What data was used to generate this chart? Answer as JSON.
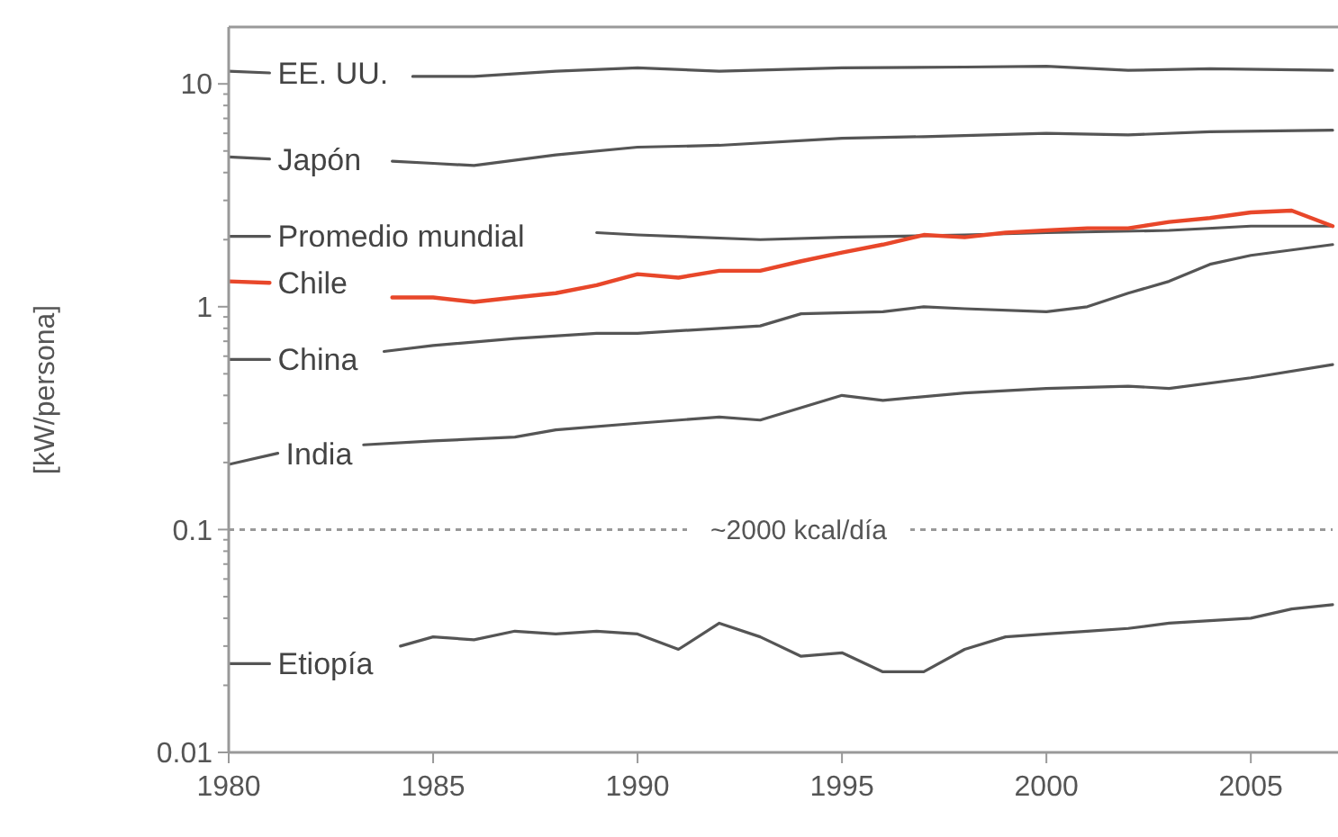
{
  "chart_data": {
    "type": "line",
    "ylabel": "[kW/persona]",
    "log": "y",
    "grid": false,
    "line_style": "solid",
    "xlim": [
      1980,
      2007
    ],
    "xticks": [
      1980,
      1985,
      1990,
      1995,
      2000,
      2005
    ],
    "ylim": [
      0.01,
      18
    ],
    "yticks": [
      0.01,
      {
        "value": 0.02,
        "label": null
      },
      {
        "value": 0.03,
        "label": null
      },
      {
        "value": 0.04,
        "label": null
      },
      {
        "value": 0.05,
        "label": null
      },
      {
        "value": 0.06,
        "label": null
      },
      {
        "value": 0.07,
        "label": null
      },
      {
        "value": 0.08,
        "label": null
      },
      {
        "value": 0.09,
        "label": null
      },
      0.1,
      {
        "value": 0.2,
        "label": null
      },
      {
        "value": 0.3,
        "label": null
      },
      {
        "value": 0.4,
        "label": null
      },
      {
        "value": 0.5,
        "label": null
      },
      {
        "value": 0.6,
        "label": null
      },
      {
        "value": 0.7,
        "label": null
      },
      {
        "value": 0.8,
        "label": null
      },
      {
        "value": 0.9,
        "label": null
      },
      1,
      {
        "value": 2,
        "label": null
      },
      {
        "value": 3,
        "label": null
      },
      {
        "value": 4,
        "label": null
      },
      {
        "value": 5,
        "label": null
      },
      {
        "value": 6,
        "label": null
      },
      {
        "value": 7,
        "label": null
      },
      {
        "value": 8,
        "label": null
      },
      {
        "value": 9,
        "label": null
      },
      10
    ],
    "ref_lines": [
      {
        "axis": "y",
        "value": 0.1,
        "label": "~2000 kcal/día",
        "color": "#999999",
        "line_style": "dotted"
      }
    ],
    "series": [
      {
        "name": "EE. UU.",
        "color": "#555555",
        "x": [
          1980,
          1981,
          1981.2,
          1984.5,
          1986,
          1988,
          1990,
          1992,
          1995,
          1998,
          2000,
          2002,
          2004,
          2007
        ],
        "values": [
          11.4,
          11.2,
          null,
          10.8,
          10.8,
          11.4,
          11.8,
          11.4,
          11.8,
          11.9,
          12.0,
          11.5,
          11.7,
          11.5
        ]
      },
      {
        "name": "Japón",
        "color": "#555555",
        "x": [
          1980,
          1981,
          1981.2,
          1984,
          1985,
          1986,
          1988,
          1990,
          1992,
          1995,
          1997,
          2000,
          2002,
          2004,
          2007
        ],
        "values": [
          4.7,
          4.6,
          null,
          4.5,
          4.4,
          4.3,
          4.8,
          5.2,
          5.3,
          5.7,
          5.8,
          6.0,
          5.9,
          6.1,
          6.2
        ]
      },
      {
        "name": "Promedio mundial",
        "color": "#555555",
        "x": [
          1980,
          1981,
          1981.2,
          1989,
          1990,
          1993,
          1995,
          1998,
          2000,
          2003,
          2005,
          2007
        ],
        "values": [
          2.07,
          2.07,
          null,
          2.15,
          2.1,
          2.0,
          2.05,
          2.1,
          2.15,
          2.2,
          2.3,
          2.3
        ]
      },
      {
        "name": "Chile",
        "color": "#e8472a",
        "x": [
          1980,
          1981,
          1981.2,
          1984,
          1985,
          1986,
          1987,
          1988,
          1989,
          1990,
          1991,
          1992,
          1993,
          1994,
          1995,
          1996,
          1997,
          1998,
          1999,
          2000,
          2001,
          2002,
          2003,
          2004,
          2005,
          2006,
          2007
        ],
        "values": [
          1.3,
          1.28,
          null,
          1.1,
          1.1,
          1.05,
          1.1,
          1.15,
          1.25,
          1.4,
          1.35,
          1.45,
          1.45,
          1.6,
          1.75,
          1.9,
          2.1,
          2.05,
          2.15,
          2.2,
          2.25,
          2.25,
          2.4,
          2.5,
          2.65,
          2.7,
          2.3
        ]
      },
      {
        "name": "China",
        "color": "#555555",
        "x": [
          1980,
          1981,
          1981.2,
          1983.8,
          1985,
          1987,
          1989,
          1990,
          1992,
          1993,
          1994,
          1996,
          1997,
          1998,
          2000,
          2001,
          2002,
          2003,
          2004,
          2005,
          2007
        ],
        "values": [
          0.58,
          0.58,
          null,
          0.63,
          0.67,
          0.72,
          0.76,
          0.76,
          0.8,
          0.82,
          0.93,
          0.95,
          1.0,
          0.98,
          0.95,
          1.0,
          1.15,
          1.3,
          1.55,
          1.7,
          1.9
        ]
      },
      {
        "name": "India",
        "color": "#555555",
        "x": [
          1980,
          1981.2,
          1981.4,
          1983.3,
          1985,
          1987,
          1988,
          1990,
          1992,
          1993,
          1995,
          1996,
          1998,
          2000,
          2002,
          2003,
          2005,
          2007
        ],
        "values": [
          0.196,
          0.22,
          null,
          0.24,
          0.25,
          0.26,
          0.28,
          0.3,
          0.32,
          0.31,
          0.4,
          0.38,
          0.41,
          0.43,
          0.44,
          0.43,
          0.48,
          0.55
        ]
      },
      {
        "name": "Etiopía",
        "color": "#555555",
        "x": [
          1980,
          1981,
          1981.2,
          1984.2,
          1985,
          1986,
          1987,
          1988,
          1989,
          1990,
          1991,
          1992,
          1993,
          1994,
          1995,
          1996,
          1997,
          1998,
          1999,
          2000,
          2001,
          2002,
          2003,
          2004,
          2005,
          2006,
          2007
        ],
        "values": [
          0.025,
          0.025,
          null,
          0.03,
          0.033,
          0.032,
          0.035,
          0.034,
          0.035,
          0.034,
          0.029,
          0.038,
          0.033,
          0.027,
          0.028,
          0.023,
          0.023,
          0.029,
          0.033,
          0.034,
          0.035,
          0.036,
          0.038,
          0.039,
          0.04,
          0.044,
          0.046
        ]
      }
    ]
  }
}
